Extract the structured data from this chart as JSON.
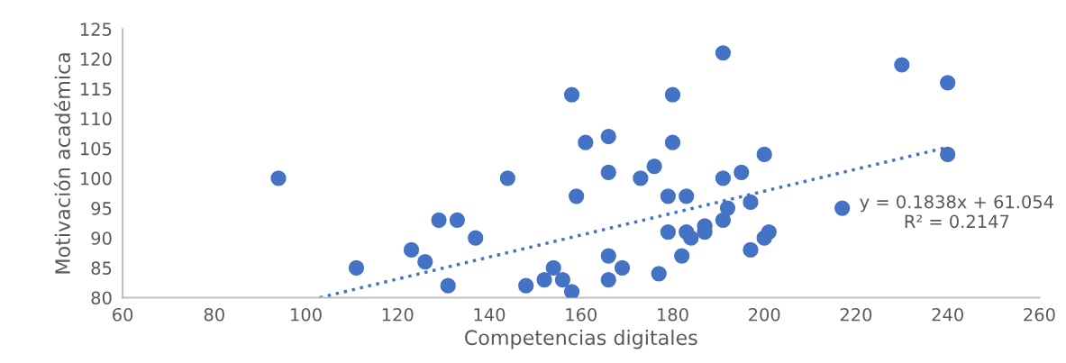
{
  "chart_data": {
    "type": "scatter",
    "xlabel": "Competencias digitales",
    "ylabel": "Motivación académica",
    "xlim": [
      60,
      260
    ],
    "xticks": [
      60,
      80,
      100,
      120,
      140,
      160,
      180,
      200,
      220,
      240,
      260
    ],
    "ylim": [
      80,
      125
    ],
    "yticks": [
      80,
      85,
      90,
      95,
      100,
      105,
      110,
      115,
      120,
      125
    ],
    "grid": false,
    "legend": false,
    "series": [
      {
        "color": "#4472c4",
        "marker": "circle",
        "x": [
          94,
          111,
          123,
          126,
          129,
          131,
          133,
          137,
          144,
          148,
          152,
          154,
          156,
          158,
          158,
          159,
          161,
          166,
          166,
          166,
          166,
          169,
          173,
          176,
          177,
          179,
          179,
          180,
          180,
          182,
          183,
          183,
          184,
          187,
          187,
          191,
          191,
          191,
          192,
          195,
          197,
          197,
          200,
          200,
          201,
          217,
          230,
          240,
          240
        ],
        "values": [
          100,
          85,
          88,
          86,
          93,
          82,
          93,
          90,
          100,
          82,
          83,
          85,
          83,
          81,
          114,
          97,
          106,
          107,
          101,
          87,
          83,
          85,
          100,
          102,
          84,
          97,
          91,
          114,
          106,
          87,
          97,
          91,
          90,
          92,
          91,
          121,
          100,
          93,
          95,
          101,
          96,
          88,
          104,
          90,
          91,
          95,
          119,
          116,
          104
        ]
      },
      {
        "type": "line",
        "color": "#4472c4",
        "line_style": "dotted",
        "marker": "none",
        "x": [
          103,
          240
        ],
        "values": [
          80,
          105.2
        ]
      }
    ],
    "annotations": [
      "y = 0.1838x + 61.054\nR² = 0.2147"
    ]
  }
}
